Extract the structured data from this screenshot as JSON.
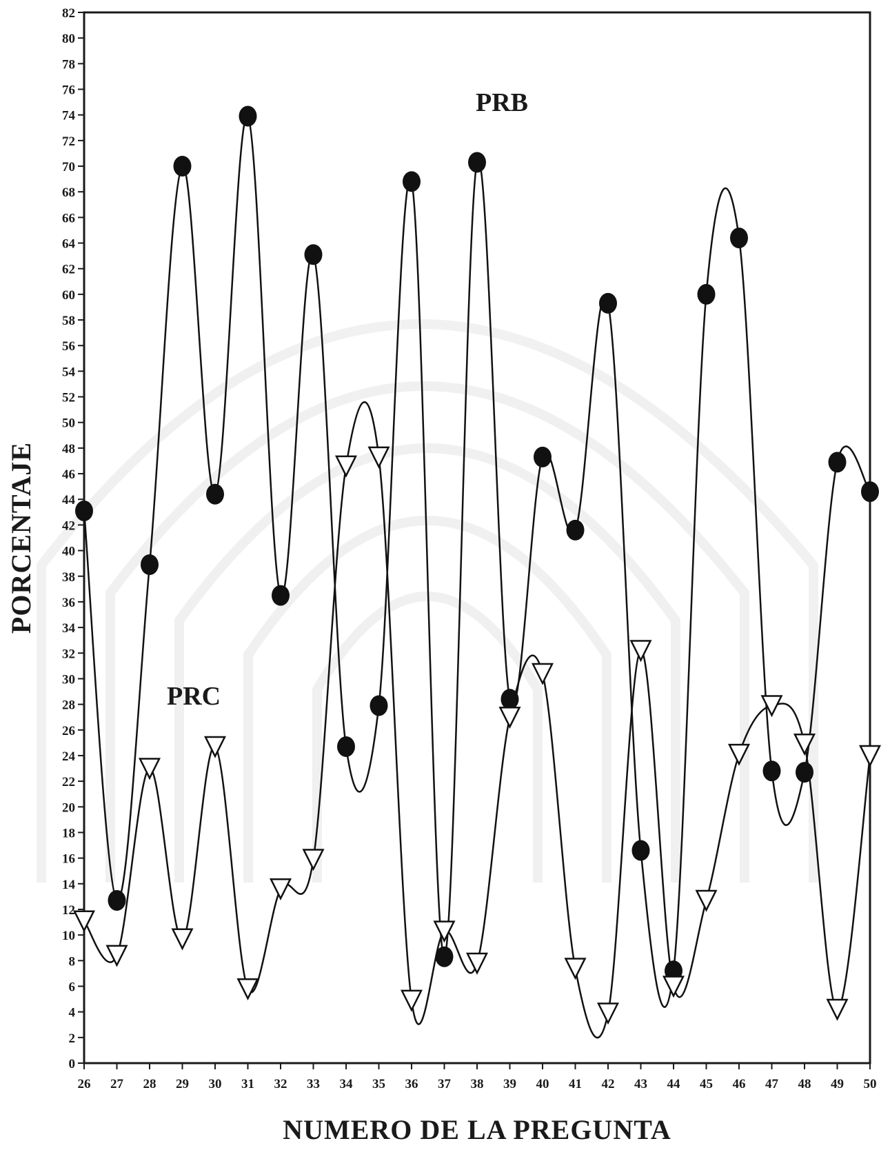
{
  "chart_data": {
    "type": "line",
    "xlabel": "NUMERO DE LA PREGUNTA",
    "ylabel": "PORCENTAJE",
    "xlim": [
      26,
      50
    ],
    "ylim": [
      0,
      82
    ],
    "x": [
      26,
      27,
      28,
      29,
      30,
      31,
      32,
      33,
      34,
      35,
      36,
      37,
      38,
      39,
      40,
      41,
      42,
      43,
      44,
      45,
      46,
      47,
      48,
      49,
      50
    ],
    "x_ticks": [
      "26",
      "27",
      "28",
      "29",
      "30",
      "31",
      "32",
      "33",
      "34",
      "35",
      "36",
      "37",
      "38",
      "39",
      "40",
      "41",
      "42",
      "43",
      "44",
      "45",
      "46",
      "47",
      "48",
      "49",
      "50"
    ],
    "y_ticks": [
      "0",
      "2",
      "4",
      "6",
      "8",
      "10",
      "12",
      "14",
      "16",
      "18",
      "20",
      "22",
      "24",
      "26",
      "28",
      "30",
      "32",
      "34",
      "36",
      "38",
      "40",
      "42",
      "44",
      "46",
      "48",
      "50",
      "52",
      "54",
      "56",
      "58",
      "60",
      "62",
      "64",
      "66",
      "68",
      "70",
      "72",
      "74",
      "76",
      "78",
      "80",
      "82"
    ],
    "grid": false,
    "series": [
      {
        "name": "PRB",
        "marker": "filled-circle",
        "color": "#111111",
        "values": [
          43.1,
          12.7,
          38.9,
          70.0,
          44.4,
          73.9,
          36.5,
          63.1,
          24.7,
          27.9,
          68.8,
          8.3,
          70.3,
          28.4,
          47.3,
          41.6,
          59.3,
          16.6,
          7.2,
          60.0,
          64.4,
          22.8,
          22.7,
          46.9,
          44.6
        ]
      },
      {
        "name": "PRC",
        "marker": "open-triangle-down",
        "color": "#111111",
        "values": [
          11.1,
          8.4,
          23.0,
          9.7,
          24.7,
          5.8,
          13.6,
          15.9,
          46.6,
          47.3,
          4.9,
          10.3,
          7.8,
          27.0,
          30.4,
          7.4,
          3.9,
          32.2,
          6.0,
          12.7,
          24.1,
          27.9,
          24.9,
          4.2,
          24.0
        ]
      }
    ]
  }
}
